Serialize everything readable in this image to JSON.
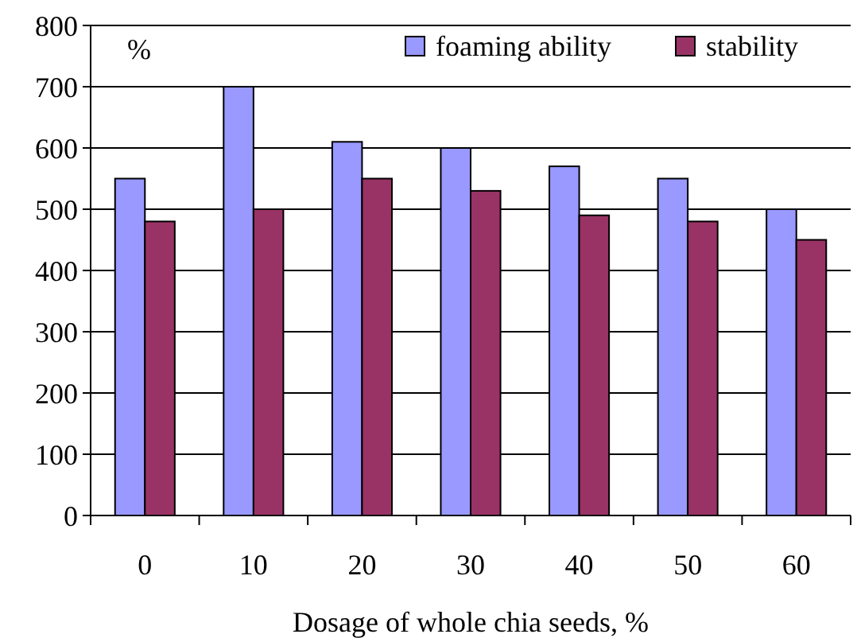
{
  "chart_data": {
    "type": "bar",
    "xlabel": "Dosage of whole chia seeds, %",
    "ylabel": "%",
    "categories": [
      "0",
      "10",
      "20",
      "30",
      "40",
      "50",
      "60"
    ],
    "series": [
      {
        "name": "foaming ability",
        "color": "#9999ff",
        "values": [
          550,
          700,
          610,
          600,
          570,
          550,
          500
        ]
      },
      {
        "name": "stability",
        "color": "#993366",
        "values": [
          480,
          500,
          550,
          530,
          490,
          480,
          450
        ]
      }
    ],
    "ylim": [
      0,
      800
    ],
    "yticks": [
      0,
      100,
      200,
      300,
      400,
      500,
      600,
      700,
      800
    ],
    "grid": "y",
    "legend": "top right"
  }
}
